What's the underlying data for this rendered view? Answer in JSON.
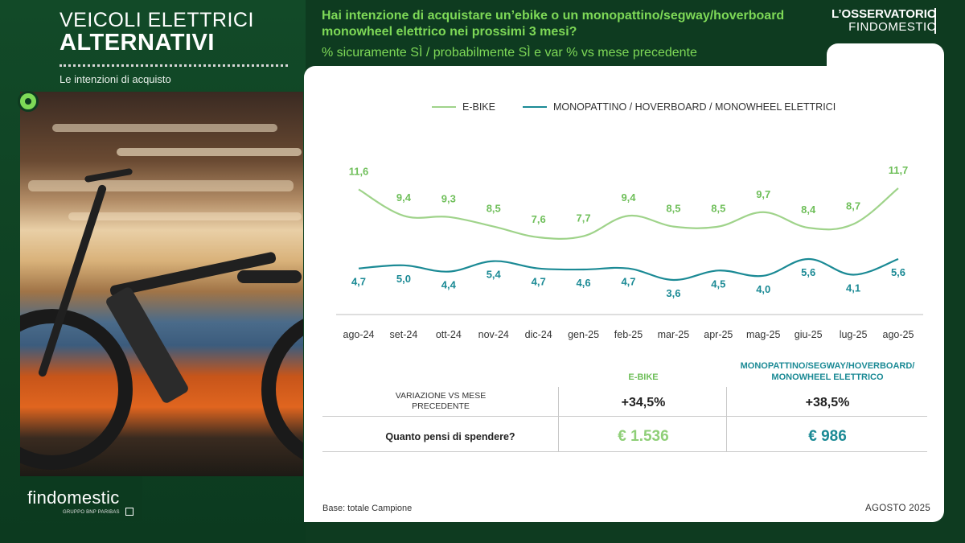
{
  "left": {
    "title_line1": "VEICOLI ELETTRICI",
    "title_line2": "ALTERNATIVI",
    "subtitle": "Le intenzioni di acquisto",
    "brand": "findomestic",
    "brand_sub": "GRUPPO BNP PARIBAS"
  },
  "header": {
    "question": "Hai intenzione di acquistare un’ebike o un monopattino/segway/hoverboard monowheel elettrico nei prossimi 3 mesi?",
    "subquestion": "% sicuramente SÌ / probabilmente SÌ e var % vs mese precedente",
    "osservatorio_line1": "L’OSSERVATORIO",
    "osservatorio_line2": "FINDOMESTIC"
  },
  "colors": {
    "ebike": "#9fd38a",
    "ebike_label": "#6fbf5a",
    "scooter": "#1b8a95",
    "accent": "#7ed957",
    "background": "#0e3b20"
  },
  "chart_data": {
    "type": "line",
    "categories": [
      "ago-24",
      "set-24",
      "ott-24",
      "nov-24",
      "dic-24",
      "gen-25",
      "feb-25",
      "mar-25",
      "apr-25",
      "mag-25",
      "giu-25",
      "lug-25",
      "ago-25"
    ],
    "series": [
      {
        "name": "E-BIKE",
        "values": [
          11.6,
          9.4,
          9.3,
          8.5,
          7.6,
          7.7,
          9.4,
          8.5,
          8.5,
          9.7,
          8.4,
          8.7,
          11.7
        ],
        "labels": [
          "11,6",
          "9,4",
          "9,3",
          "8,5",
          "7,6",
          "7,7",
          "9,4",
          "8,5",
          "8,5",
          "9,7",
          "8,4",
          "8,7",
          "11,7"
        ]
      },
      {
        "name": "MONOPATTINO / HOVERBOARD / MONOWHEEL ELETTRICI",
        "values": [
          4.7,
          5.0,
          4.4,
          5.4,
          4.7,
          4.6,
          4.7,
          3.6,
          4.5,
          4.0,
          5.6,
          4.1,
          5.6
        ],
        "labels": [
          "4,7",
          "5,0",
          "4,4",
          "5,4",
          "4,7",
          "4,6",
          "4,7",
          "3,6",
          "4,5",
          "4,0",
          "5,6",
          "4,1",
          "5,6"
        ]
      }
    ],
    "legend_position": "top",
    "grid": false
  },
  "table": {
    "col1_header": "E-BIKE",
    "col2_header": "MONOPATTINO/SEGWAY/HOVERBOARD/ MONOWHEEL ELETTRICO",
    "row1_label": "VARIAZIONE VS MESE PRECEDENTE",
    "row1_col1": "+34,5%",
    "row1_col2": "+38,5%",
    "row2_label": "Quanto pensi di spendere?",
    "row2_col1": "€ 1.536",
    "row2_col2": "€ 986"
  },
  "footer": {
    "base": "Base: totale Campione",
    "date": "AGOSTO 2025"
  }
}
